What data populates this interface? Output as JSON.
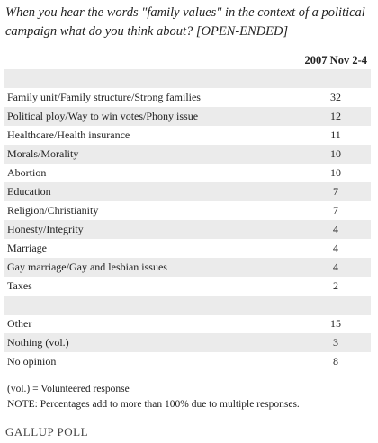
{
  "header": {
    "title": "When you hear the words \"family values\" in the context of a political campaign what do you think about? [OPEN-ENDED]",
    "column": "2007 Nov 2-4"
  },
  "table": {
    "rows": [
      [
        "Family unit/Family structure/Strong families",
        32
      ],
      [
        "Political ploy/Way to win votes/Phony issue",
        12
      ],
      [
        "Healthcare/Health insurance",
        11
      ],
      [
        "Morals/Morality",
        10
      ],
      [
        "Abortion",
        10
      ],
      [
        "Education",
        7
      ],
      [
        "Religion/Christianity",
        7
      ],
      [
        "Honesty/Integrity",
        4
      ],
      [
        "Marriage",
        4
      ],
      [
        "Gay marriage/Gay and lesbian issues",
        4
      ],
      [
        "Taxes",
        2
      ]
    ],
    "other_rows": [
      [
        "Other",
        15
      ],
      [
        "Nothing (vol.)",
        3
      ],
      [
        "No opinion",
        8
      ]
    ]
  },
  "notes": [
    "(vol.) = Volunteered response",
    "NOTE: Percentages add to more than 100% due to multiple responses."
  ],
  "logo": "GALLUP POLL"
}
